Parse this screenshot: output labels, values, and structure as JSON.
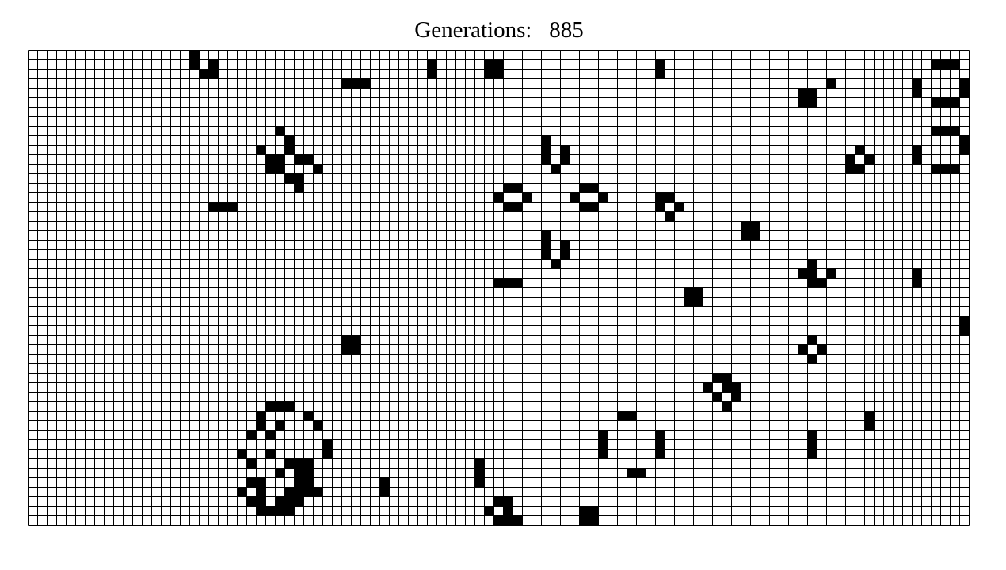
{
  "header": {
    "label": "Generations:",
    "count": "885"
  },
  "board": {
    "cols": 99,
    "rows": 50,
    "line_color": "#000000",
    "alive_color": "#000000",
    "dead_color": "#ffffff",
    "alive_cells": [
      [
        17,
        0
      ],
      [
        17,
        1
      ],
      [
        19,
        1
      ],
      [
        42,
        1
      ],
      [
        48,
        1
      ],
      [
        49,
        1
      ],
      [
        66,
        1
      ],
      [
        95,
        1
      ],
      [
        96,
        1
      ],
      [
        97,
        1
      ],
      [
        18,
        2
      ],
      [
        19,
        2
      ],
      [
        42,
        2
      ],
      [
        48,
        2
      ],
      [
        49,
        2
      ],
      [
        66,
        2
      ],
      [
        33,
        3
      ],
      [
        34,
        3
      ],
      [
        35,
        3
      ],
      [
        84,
        3
      ],
      [
        93,
        3
      ],
      [
        98,
        3
      ],
      [
        81,
        4
      ],
      [
        82,
        4
      ],
      [
        93,
        4
      ],
      [
        98,
        4
      ],
      [
        81,
        5
      ],
      [
        82,
        5
      ],
      [
        95,
        5
      ],
      [
        96,
        5
      ],
      [
        97,
        5
      ],
      [
        26,
        8
      ],
      [
        95,
        8
      ],
      [
        96,
        8
      ],
      [
        97,
        8
      ],
      [
        27,
        9
      ],
      [
        54,
        9
      ],
      [
        98,
        9
      ],
      [
        24,
        10
      ],
      [
        27,
        10
      ],
      [
        54,
        10
      ],
      [
        56,
        10
      ],
      [
        87,
        10
      ],
      [
        93,
        10
      ],
      [
        98,
        10
      ],
      [
        25,
        11
      ],
      [
        26,
        11
      ],
      [
        28,
        11
      ],
      [
        29,
        11
      ],
      [
        54,
        11
      ],
      [
        56,
        11
      ],
      [
        86,
        11
      ],
      [
        88,
        11
      ],
      [
        93,
        11
      ],
      [
        25,
        12
      ],
      [
        26,
        12
      ],
      [
        30,
        12
      ],
      [
        55,
        12
      ],
      [
        86,
        12
      ],
      [
        87,
        12
      ],
      [
        95,
        12
      ],
      [
        96,
        12
      ],
      [
        97,
        12
      ],
      [
        27,
        13
      ],
      [
        28,
        13
      ],
      [
        28,
        14
      ],
      [
        50,
        14
      ],
      [
        51,
        14
      ],
      [
        58,
        14
      ],
      [
        59,
        14
      ],
      [
        49,
        15
      ],
      [
        52,
        15
      ],
      [
        57,
        15
      ],
      [
        60,
        15
      ],
      [
        66,
        15
      ],
      [
        67,
        15
      ],
      [
        19,
        16
      ],
      [
        20,
        16
      ],
      [
        21,
        16
      ],
      [
        50,
        16
      ],
      [
        51,
        16
      ],
      [
        58,
        16
      ],
      [
        59,
        16
      ],
      [
        66,
        16
      ],
      [
        68,
        16
      ],
      [
        67,
        17
      ],
      [
        75,
        18
      ],
      [
        76,
        18
      ],
      [
        54,
        19
      ],
      [
        75,
        19
      ],
      [
        76,
        19
      ],
      [
        54,
        20
      ],
      [
        56,
        20
      ],
      [
        54,
        21
      ],
      [
        56,
        21
      ],
      [
        55,
        22
      ],
      [
        82,
        22
      ],
      [
        81,
        23
      ],
      [
        82,
        23
      ],
      [
        84,
        23
      ],
      [
        93,
        23
      ],
      [
        49,
        24
      ],
      [
        50,
        24
      ],
      [
        51,
        24
      ],
      [
        82,
        24
      ],
      [
        83,
        24
      ],
      [
        93,
        24
      ],
      [
        69,
        25
      ],
      [
        70,
        25
      ],
      [
        69,
        26
      ],
      [
        70,
        26
      ],
      [
        98,
        28
      ],
      [
        98,
        29
      ],
      [
        33,
        30
      ],
      [
        34,
        30
      ],
      [
        82,
        30
      ],
      [
        33,
        31
      ],
      [
        34,
        31
      ],
      [
        81,
        31
      ],
      [
        83,
        31
      ],
      [
        82,
        32
      ],
      [
        72,
        34
      ],
      [
        73,
        34
      ],
      [
        71,
        35
      ],
      [
        73,
        35
      ],
      [
        74,
        35
      ],
      [
        72,
        36
      ],
      [
        74,
        36
      ],
      [
        73,
        37
      ],
      [
        25,
        37
      ],
      [
        26,
        37
      ],
      [
        27,
        37
      ],
      [
        24,
        38
      ],
      [
        29,
        38
      ],
      [
        62,
        38
      ],
      [
        63,
        38
      ],
      [
        88,
        38
      ],
      [
        24,
        39
      ],
      [
        26,
        39
      ],
      [
        30,
        39
      ],
      [
        88,
        39
      ],
      [
        23,
        40
      ],
      [
        25,
        40
      ],
      [
        60,
        40
      ],
      [
        66,
        40
      ],
      [
        82,
        40
      ],
      [
        31,
        41
      ],
      [
        60,
        41
      ],
      [
        66,
        41
      ],
      [
        82,
        41
      ],
      [
        22,
        42
      ],
      [
        25,
        42
      ],
      [
        31,
        42
      ],
      [
        60,
        42
      ],
      [
        66,
        42
      ],
      [
        82,
        42
      ],
      [
        23,
        43
      ],
      [
        27,
        43
      ],
      [
        28,
        43
      ],
      [
        29,
        43
      ],
      [
        47,
        43
      ],
      [
        26,
        44
      ],
      [
        28,
        44
      ],
      [
        29,
        44
      ],
      [
        47,
        44
      ],
      [
        63,
        44
      ],
      [
        64,
        44
      ],
      [
        23,
        45
      ],
      [
        24,
        45
      ],
      [
        28,
        45
      ],
      [
        29,
        45
      ],
      [
        37,
        45
      ],
      [
        47,
        45
      ],
      [
        22,
        46
      ],
      [
        24,
        46
      ],
      [
        27,
        46
      ],
      [
        28,
        46
      ],
      [
        29,
        46
      ],
      [
        30,
        46
      ],
      [
        37,
        46
      ],
      [
        23,
        47
      ],
      [
        24,
        47
      ],
      [
        26,
        47
      ],
      [
        27,
        47
      ],
      [
        28,
        47
      ],
      [
        24,
        48
      ],
      [
        25,
        48
      ],
      [
        26,
        48
      ],
      [
        27,
        48
      ],
      [
        48,
        48
      ],
      [
        50,
        48
      ],
      [
        58,
        48
      ],
      [
        59,
        48
      ],
      [
        49,
        47
      ],
      [
        50,
        47
      ],
      [
        49,
        49
      ],
      [
        50,
        49
      ],
      [
        51,
        49
      ],
      [
        58,
        49
      ],
      [
        59,
        49
      ]
    ]
  }
}
